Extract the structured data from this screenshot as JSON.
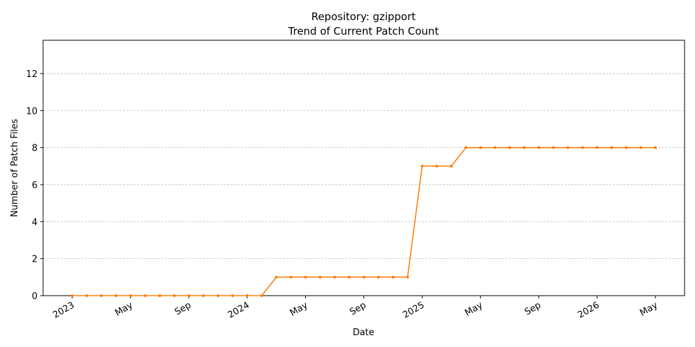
{
  "chart_data": {
    "type": "line",
    "title": [
      "Repository: gzipport",
      "Trend of Current Patch Count"
    ],
    "xlabel": "Date",
    "ylabel": "Number of Patch Files",
    "x": [
      "2023-01",
      "2023-02",
      "2023-03",
      "2023-04",
      "2023-05",
      "2023-06",
      "2023-07",
      "2023-08",
      "2023-09",
      "2023-10",
      "2023-11",
      "2023-12",
      "2024-01",
      "2024-02",
      "2024-03",
      "2024-04",
      "2024-05",
      "2024-06",
      "2024-07",
      "2024-08",
      "2024-09",
      "2024-10",
      "2024-11",
      "2024-12",
      "2025-01",
      "2025-02",
      "2025-03",
      "2025-04",
      "2025-05",
      "2025-06",
      "2025-07",
      "2025-08",
      "2025-09",
      "2025-10",
      "2025-11",
      "2025-12",
      "2026-01",
      "2026-02",
      "2026-03",
      "2026-04",
      "2026-05"
    ],
    "values": [
      0,
      0,
      0,
      0,
      0,
      0,
      0,
      0,
      0,
      0,
      0,
      0,
      0,
      0,
      1,
      1,
      1,
      1,
      1,
      1,
      1,
      1,
      1,
      1,
      7,
      7,
      7,
      8,
      8,
      8,
      8,
      8,
      8,
      8,
      8,
      8,
      8,
      8,
      8,
      8,
      8
    ],
    "color": "#ff7f0e",
    "xlim": [
      "2022-11",
      "2026-07"
    ],
    "xticks": [
      {
        "value": "2023-01",
        "label": "2023"
      },
      {
        "value": "2023-05",
        "label": "May"
      },
      {
        "value": "2023-09",
        "label": "Sep"
      },
      {
        "value": "2024-01",
        "label": "2024"
      },
      {
        "value": "2024-05",
        "label": "May"
      },
      {
        "value": "2024-09",
        "label": "Sep"
      },
      {
        "value": "2025-01",
        "label": "2025"
      },
      {
        "value": "2025-05",
        "label": "May"
      },
      {
        "value": "2025-09",
        "label": "Sep"
      },
      {
        "value": "2026-01",
        "label": "2026"
      },
      {
        "value": "2026-05",
        "label": "May"
      }
    ],
    "ylim": [
      0,
      13.8
    ],
    "yticks": [
      0,
      2,
      4,
      6,
      8,
      10,
      12
    ],
    "grid": true
  }
}
